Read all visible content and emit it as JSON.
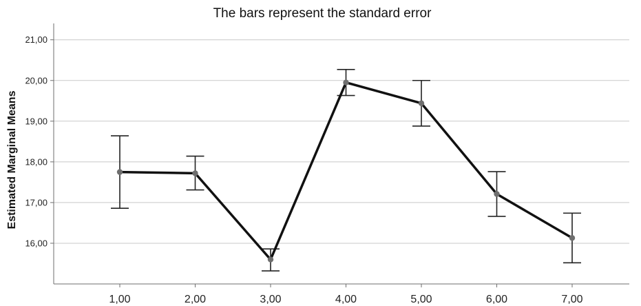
{
  "chart_data": {
    "type": "line",
    "title": "The bars represent the standard error",
    "xlabel": "",
    "ylabel": "Estimated Marginal Means",
    "categories": [
      "1,00",
      "2,00",
      "3,00",
      "4,00",
      "5,00",
      "6,00",
      "7,00"
    ],
    "series": [
      {
        "values": [
          17.75,
          17.72,
          15.6,
          19.95,
          19.44,
          17.21,
          16.13
        ],
        "error_low": [
          16.86,
          17.31,
          15.32,
          19.63,
          18.88,
          16.66,
          15.52
        ],
        "error_high": [
          18.64,
          18.14,
          15.86,
          20.27,
          20.0,
          17.76,
          16.74
        ]
      }
    ],
    "ylim": [
      15.0,
      21.3
    ],
    "yticks": [
      16.0,
      17.0,
      18.0,
      19.0,
      20.0,
      21.0
    ],
    "ytick_labels": [
      "16,00",
      "17,00",
      "18,00",
      "19,00",
      "20,00",
      "21,00"
    ],
    "grid": true,
    "colors": {
      "line": "#111111",
      "marker": "#6e6e6e",
      "grid": "#c8c8c8"
    }
  }
}
